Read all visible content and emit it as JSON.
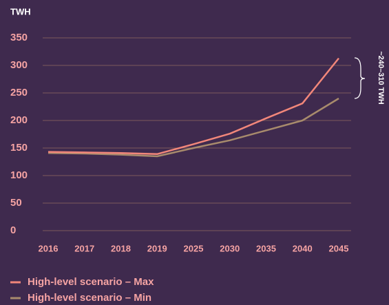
{
  "chart_data": {
    "type": "line",
    "y_axis_label": "TWH",
    "categories": [
      "2016",
      "2017",
      "2018",
      "2019",
      "2025",
      "2030",
      "2035",
      "2040",
      "2045"
    ],
    "series": [
      {
        "name": "High-level scenario – Max",
        "color": "#f2877a",
        "values": [
          143,
          142,
          141,
          139,
          157,
          176,
          204,
          231,
          313
        ]
      },
      {
        "name": "High-level scenario – Min",
        "color": "#a88b6c",
        "values": [
          141,
          140,
          138,
          135,
          150,
          164,
          182,
          200,
          240
        ]
      }
    ],
    "ylim": [
      0,
      350
    ],
    "yticks": [
      0,
      50,
      100,
      150,
      200,
      250,
      300,
      350
    ],
    "grid": true,
    "annotation": "~240–310 TWH"
  }
}
